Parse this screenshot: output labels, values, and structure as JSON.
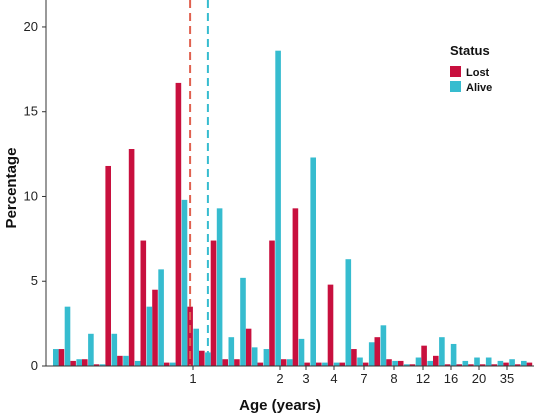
{
  "chart_data": {
    "type": "bar",
    "xlabel": "Age (years)",
    "ylabel": "Percentage",
    "ylim": [
      0,
      21
    ],
    "y_ticks": [
      0,
      5,
      10,
      15,
      20
    ],
    "x_tick_labels": [
      "1",
      "2",
      "3",
      "4",
      "7",
      "8",
      "12",
      "16",
      "20",
      "35"
    ],
    "x_scale": "ordinal age bins (non-linear)",
    "grid": false,
    "legend": {
      "title": "Status",
      "position": "top-right",
      "entries": [
        {
          "name": "Lost",
          "color": "#c8103e"
        },
        {
          "name": "Alive",
          "color": "#36bccf"
        }
      ]
    },
    "reference_lines": [
      {
        "series": "Lost",
        "style": "dashed",
        "color": "#e0614f",
        "bin_index": 11
      },
      {
        "series": "Alive",
        "style": "dashed",
        "color": "#36bccf",
        "bin_index": 13
      }
    ],
    "series": [
      {
        "name": "Lost",
        "color": "#c8103e",
        "values": [
          1.0,
          0.3,
          0.4,
          0.1,
          11.8,
          0.6,
          12.8,
          7.4,
          4.5,
          0.2,
          16.7,
          3.5,
          0.9,
          7.4,
          0.4,
          0.4,
          2.2,
          0.2,
          7.4,
          0.4,
          9.3,
          0.2,
          0.2,
          4.8,
          0.2,
          1.0,
          0.2,
          1.7,
          0.4,
          0.3,
          0.1,
          1.2,
          0.6,
          0.1,
          0.1,
          0.1,
          0.1,
          0.1,
          0.2,
          0.1,
          0.2
        ]
      },
      {
        "name": "Alive",
        "color": "#36bccf",
        "values": [
          1.0,
          3.5,
          0.4,
          1.9,
          0.1,
          1.9,
          0.6,
          0.3,
          3.5,
          5.7,
          0.2,
          9.8,
          2.2,
          0.8,
          9.3,
          1.7,
          5.2,
          1.1,
          1.0,
          18.6,
          0.4,
          1.6,
          12.3,
          0.2,
          0.2,
          6.3,
          0.5,
          1.4,
          2.4,
          0.3,
          0.1,
          0.5,
          0.3,
          1.7,
          1.3,
          0.3,
          0.5,
          0.5,
          0.3,
          0.4,
          0.3
        ]
      }
    ]
  }
}
